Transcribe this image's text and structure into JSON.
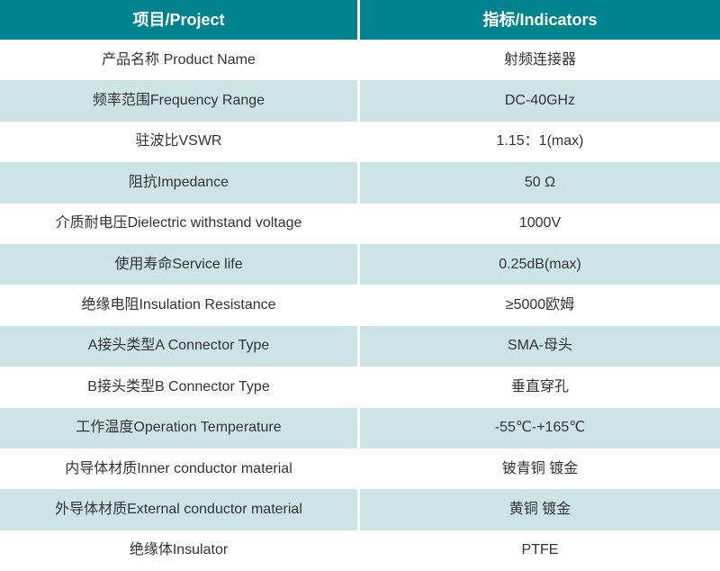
{
  "table": {
    "header": {
      "project": "项目/Project",
      "indicators": "指标/Indicators"
    },
    "rows": [
      {
        "project": "产品名称 Product Name",
        "indicator": "射频连接器"
      },
      {
        "project": "频率范围Frequency Range",
        "indicator": "DC-40GHz"
      },
      {
        "project": "驻波比VSWR",
        "indicator": "1.15：1(max)"
      },
      {
        "project": "阻抗Impedance",
        "indicator": "50 Ω"
      },
      {
        "project": "介质耐电压Dielectric withstand voltage",
        "indicator": "1000V"
      },
      {
        "project": "使用寿命Service life",
        "indicator": "0.25dB(max)"
      },
      {
        "project": "绝缘电阻Insulation Resistance",
        "indicator": "≥5000欧姆"
      },
      {
        "project": "A接头类型A Connector Type",
        "indicator": "SMA-母头"
      },
      {
        "project": "B接头类型B Connector Type",
        "indicator": "垂直穿孔"
      },
      {
        "project": "工作温度Operation Temperature",
        "indicator": "-55℃-+165℃"
      },
      {
        "project": "内导体材质Inner conductor material",
        "indicator": "铍青铜 镀金"
      },
      {
        "project": "外导体材质External conductor material",
        "indicator": "黄铜 镀金"
      },
      {
        "project": "绝缘体Insulator",
        "indicator": "PTFE"
      }
    ]
  },
  "colors": {
    "header_bg": "#00838f",
    "header_text": "#ffffff",
    "row_bg": "#ffffff",
    "row_alt_bg": "#cde4e7",
    "text": "#333333",
    "divider": "#ffffff"
  }
}
